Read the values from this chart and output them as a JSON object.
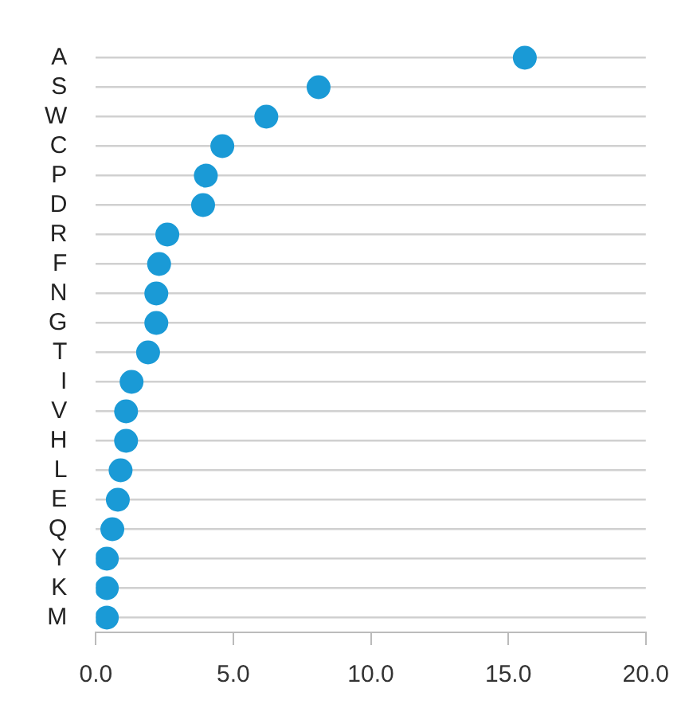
{
  "chart_data": {
    "type": "scatter",
    "orientation": "horizontal",
    "categories": [
      "A",
      "S",
      "W",
      "C",
      "P",
      "D",
      "R",
      "F",
      "N",
      "G",
      "T",
      "I",
      "V",
      "H",
      "L",
      "E",
      "Q",
      "Y",
      "K",
      "M"
    ],
    "series": [
      {
        "color": "#1a9ad6",
        "values": [
          15.6,
          8.1,
          6.2,
          4.6,
          4.0,
          3.9,
          2.6,
          2.3,
          2.2,
          2.2,
          1.9,
          1.3,
          1.1,
          1.1,
          0.9,
          0.8,
          0.6,
          0.4,
          0.4,
          0.4
        ]
      }
    ],
    "xlim": [
      0,
      20
    ],
    "xticks": [
      {
        "value": 0,
        "label": "0.0"
      },
      {
        "value": 5,
        "label": "5.0"
      },
      {
        "value": 10,
        "label": "10.0"
      },
      {
        "value": 15,
        "label": "15.0"
      },
      {
        "value": 20,
        "label": "20.0"
      }
    ],
    "grid": "y",
    "marker": "circle",
    "legend": false
  }
}
